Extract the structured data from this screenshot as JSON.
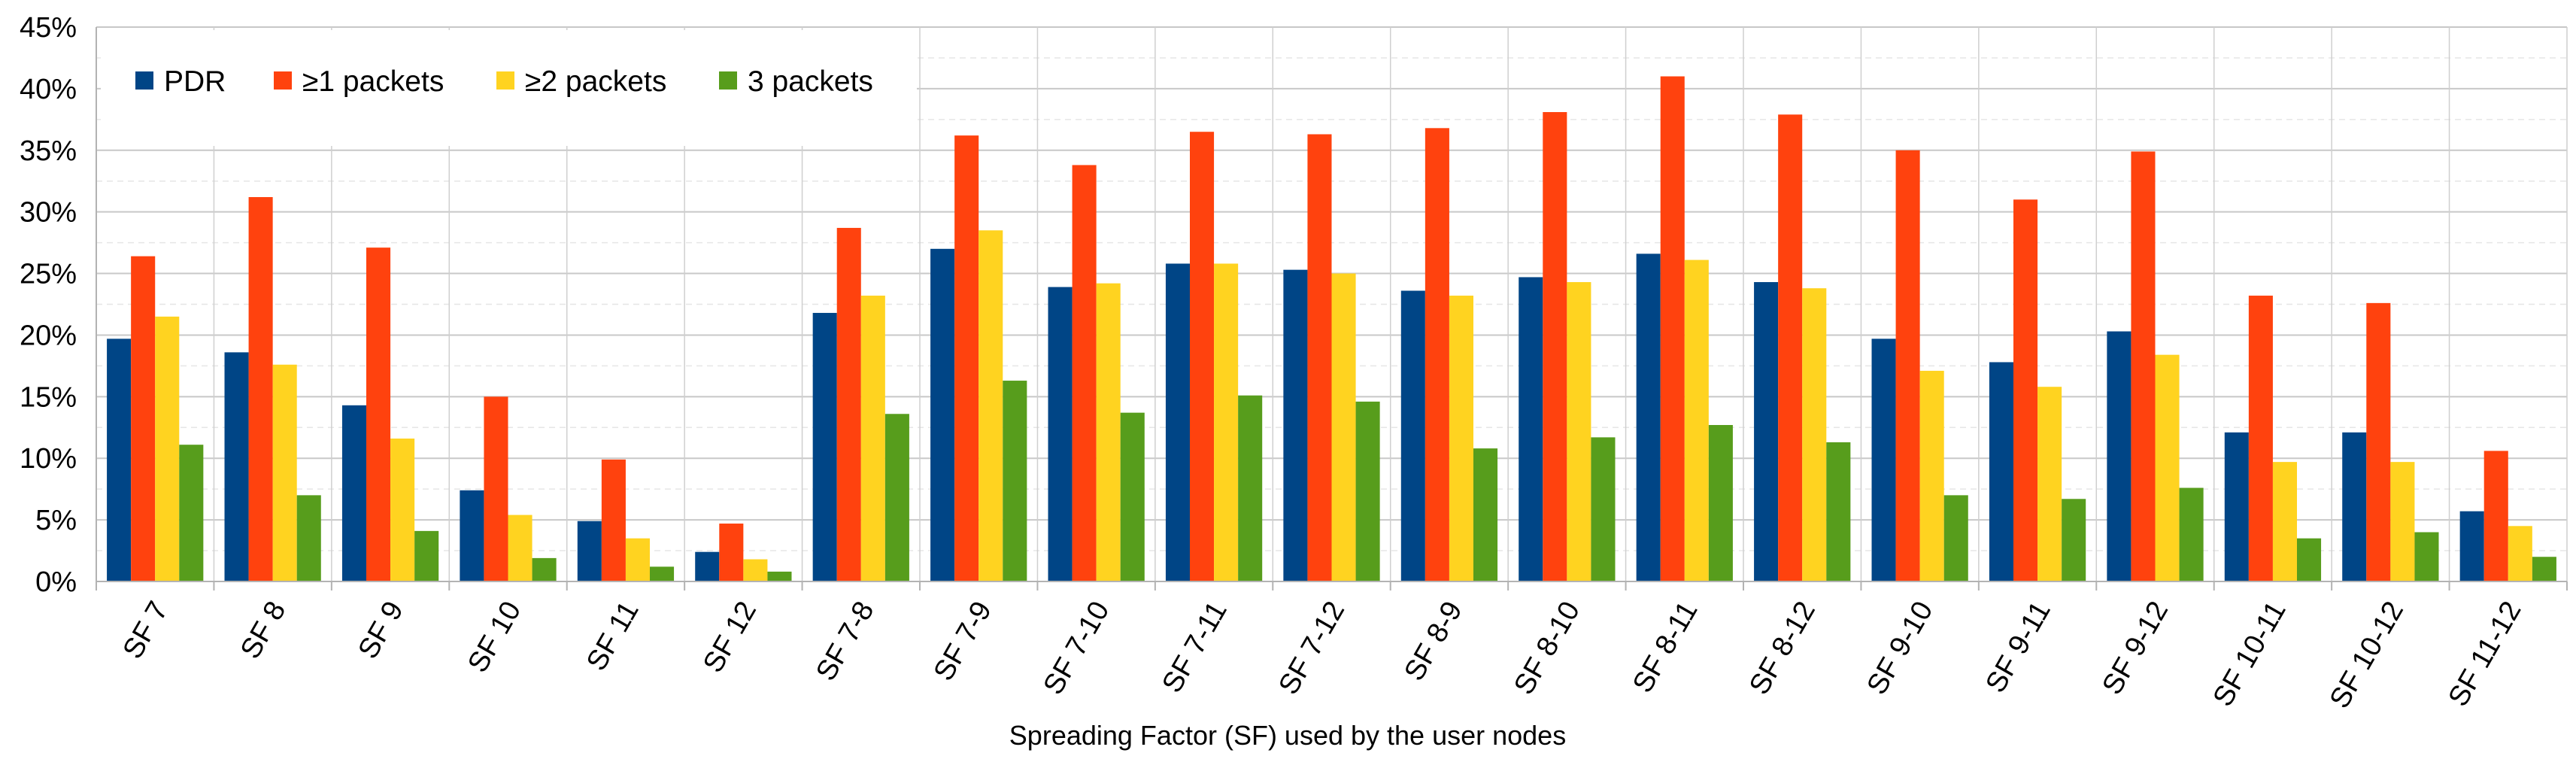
{
  "chart_data": {
    "type": "bar",
    "title": "",
    "xlabel": "Spreading Factor (SF) used by the user nodes",
    "ylabel": "",
    "ylim": [
      0,
      45
    ],
    "yticks": [
      "0%",
      "5%",
      "10%",
      "15%",
      "20%",
      "25%",
      "30%",
      "35%",
      "40%",
      "45%"
    ],
    "legend_position": "top-left",
    "categories": [
      "SF 7",
      "SF 8",
      "SF 9",
      "SF 10",
      "SF 11",
      "SF 12",
      "SF 7-8",
      "SF 7-9",
      "SF 7-10",
      "SF 7-11",
      "SF 7-12",
      "SF 8-9",
      "SF 8-10",
      "SF 8-11",
      "SF 8-12",
      "SF 9-10",
      "SF 9-11",
      "SF 9-12",
      "SF 10-11",
      "SF 10-12",
      "SF 11-12"
    ],
    "series": [
      {
        "name": "PDR",
        "color": "#004586",
        "values": [
          19.7,
          18.6,
          14.3,
          7.4,
          4.9,
          2.4,
          21.8,
          27.0,
          23.9,
          25.8,
          25.3,
          23.6,
          24.7,
          26.6,
          24.3,
          19.7,
          17.8,
          20.3,
          12.1,
          12.1,
          5.7
        ]
      },
      {
        "name": "≥1 packets",
        "color": "#ff420e",
        "values": [
          26.4,
          31.2,
          27.1,
          15.0,
          9.9,
          4.7,
          28.7,
          36.2,
          33.8,
          36.5,
          36.3,
          36.8,
          38.1,
          41.0,
          37.9,
          35.0,
          31.0,
          34.9,
          23.2,
          22.6,
          10.6
        ]
      },
      {
        "name": "≥2 packets",
        "color": "#ffd320",
        "values": [
          21.5,
          17.6,
          11.6,
          5.4,
          3.5,
          1.8,
          23.2,
          28.5,
          24.2,
          25.8,
          25.0,
          23.2,
          24.3,
          26.1,
          23.8,
          17.1,
          15.8,
          18.4,
          9.7,
          9.7,
          4.5
        ]
      },
      {
        "name": "3 packets",
        "color": "#579d1c",
        "values": [
          11.1,
          7.0,
          4.1,
          1.9,
          1.2,
          0.8,
          13.6,
          16.3,
          13.7,
          15.1,
          14.6,
          10.8,
          11.7,
          12.7,
          11.3,
          7.0,
          6.7,
          7.6,
          3.5,
          4.0,
          2.0
        ]
      }
    ]
  }
}
